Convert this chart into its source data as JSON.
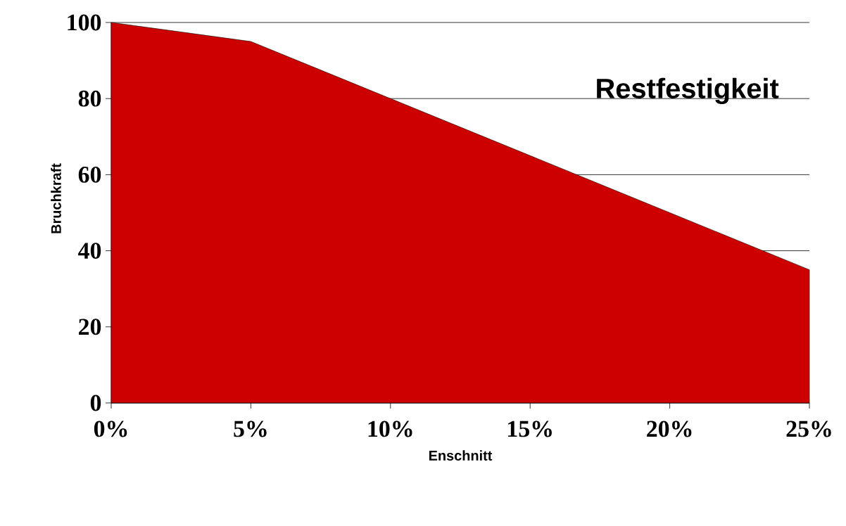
{
  "chart_data": {
    "type": "area",
    "title": "Restfestigkeit",
    "xlabel": "Enschnitt",
    "ylabel": "Bruchkraft",
    "categories": [
      "0%",
      "5%",
      "10%",
      "15%",
      "20%",
      "25%"
    ],
    "values": [
      100,
      95,
      80,
      65,
      50,
      35
    ],
    "color": "#cc0000",
    "ylim": [
      0,
      100
    ],
    "yticks": [
      0,
      20,
      40,
      60,
      80,
      100
    ],
    "grid": "y"
  }
}
